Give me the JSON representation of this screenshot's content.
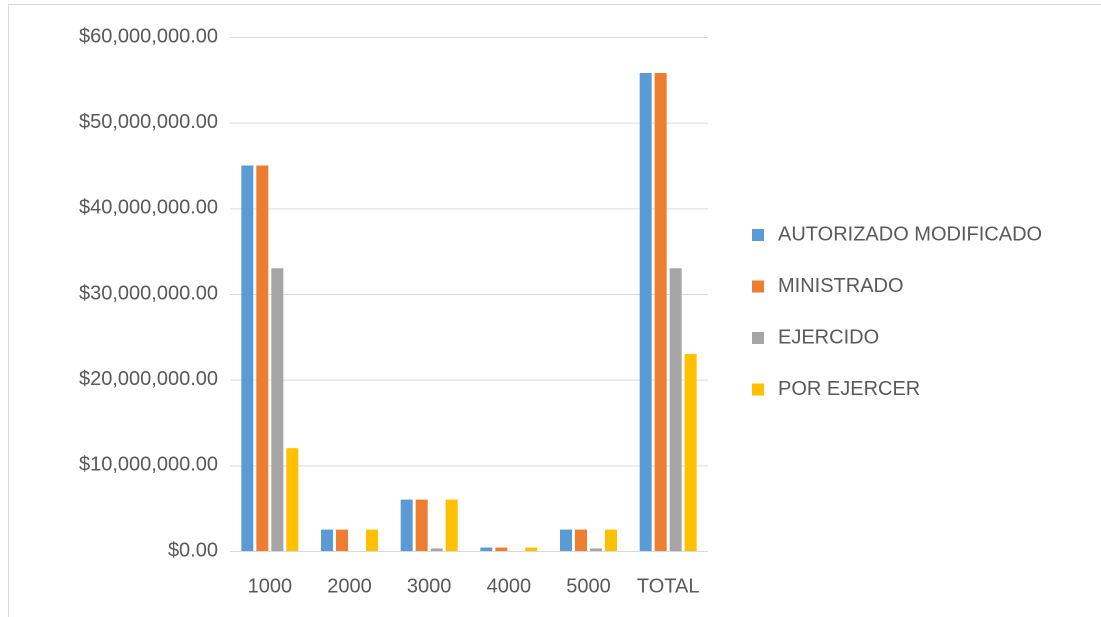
{
  "chart_data": {
    "type": "bar",
    "categories": [
      "1000",
      "2000",
      "3000",
      "4000",
      "5000",
      "TOTAL"
    ],
    "series": [
      {
        "name": "AUTORIZADO MODIFICADO",
        "color": "#5b9bd5",
        "values": [
          45000000,
          2500000,
          6000000,
          400000,
          2500000,
          55800000
        ]
      },
      {
        "name": "MINISTRADO",
        "color": "#ed7d31",
        "values": [
          45000000,
          2500000,
          6000000,
          400000,
          2500000,
          55800000
        ]
      },
      {
        "name": "EJERCIDO",
        "color": "#a5a5a5",
        "values": [
          33000000,
          0,
          300000,
          0,
          300000,
          33000000
        ]
      },
      {
        "name": "POR EJERCER",
        "color": "#ffc000",
        "values": [
          12000000,
          2500000,
          6000000,
          400000,
          2500000,
          23000000
        ]
      }
    ],
    "ylim": [
      0,
      60000000
    ],
    "yticks": [
      {
        "value": 0,
        "label": "$0.00"
      },
      {
        "value": 10000000,
        "label": "$10,000,000.00"
      },
      {
        "value": 20000000,
        "label": "$20,000,000.00"
      },
      {
        "value": 30000000,
        "label": "$30,000,000.00"
      },
      {
        "value": 40000000,
        "label": "$40,000,000.00"
      },
      {
        "value": 50000000,
        "label": "$50,000,000.00"
      },
      {
        "value": 60000000,
        "label": "$60,000,000.00"
      }
    ],
    "grid": true,
    "legend": "right"
  }
}
